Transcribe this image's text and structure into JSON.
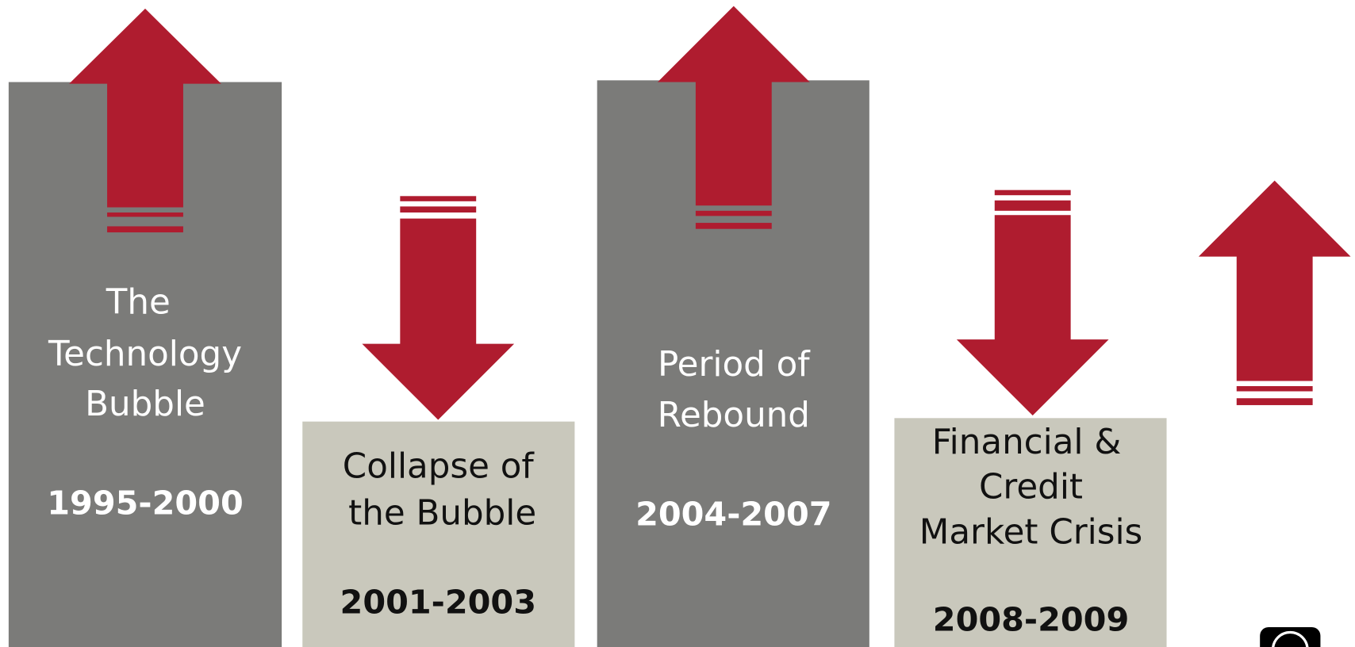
{
  "panels": [
    {
      "lines": [
        "The",
        "Technology",
        "Bubble"
      ],
      "years": "1995-2000"
    },
    {
      "lines": [
        "Collapse of",
        "the Bubble"
      ],
      "years": "2001-2003"
    },
    {
      "lines": [
        "Period of",
        "Rebound"
      ],
      "years": "2004-2007"
    },
    {
      "lines": [
        "Financial &",
        "Credit",
        "Market Crisis"
      ],
      "years": "2008-2009"
    }
  ]
}
